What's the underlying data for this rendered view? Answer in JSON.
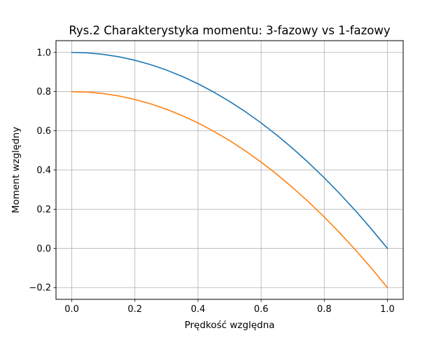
{
  "chart_data": {
    "type": "line",
    "title": "Rys.2 Charakterystyka momentu: 3-fazowy vs 1-fazowy",
    "xlabel": "Prędkość względna",
    "ylabel": "Moment względny",
    "xlim": [
      -0.05,
      1.05
    ],
    "ylim": [
      -0.26,
      1.06
    ],
    "xticks": [
      0.0,
      0.2,
      0.4,
      0.6,
      0.8,
      1.0
    ],
    "xtick_labels": [
      "0.0",
      "0.2",
      "0.4",
      "0.6",
      "0.8",
      "1.0"
    ],
    "yticks": [
      -0.2,
      0.0,
      0.2,
      0.4,
      0.6,
      0.8,
      1.0
    ],
    "ytick_labels": [
      "−0.2",
      "0.0",
      "0.2",
      "0.4",
      "0.6",
      "0.8",
      "1.0"
    ],
    "grid": true,
    "x": [
      0.0,
      0.05,
      0.1,
      0.15,
      0.2,
      0.25,
      0.3,
      0.35,
      0.4,
      0.45,
      0.5,
      0.55,
      0.6,
      0.65,
      0.7,
      0.75,
      0.8,
      0.85,
      0.9,
      0.95,
      1.0
    ],
    "series": [
      {
        "color": "#1f77b4",
        "values": [
          1.0,
          0.9975,
          0.99,
          0.9775,
          0.96,
          0.9375,
          0.91,
          0.8775,
          0.84,
          0.7975,
          0.75,
          0.6975,
          0.64,
          0.5775,
          0.51,
          0.4375,
          0.36,
          0.2775,
          0.19,
          0.0975,
          0.0
        ]
      },
      {
        "color": "#ff7f0e",
        "values": [
          0.8,
          0.7975,
          0.79,
          0.7775,
          0.76,
          0.7375,
          0.71,
          0.6775,
          0.64,
          0.5975,
          0.55,
          0.4975,
          0.44,
          0.3775,
          0.31,
          0.2375,
          0.16,
          0.0775,
          -0.01,
          -0.1025,
          -0.2
        ]
      }
    ]
  }
}
